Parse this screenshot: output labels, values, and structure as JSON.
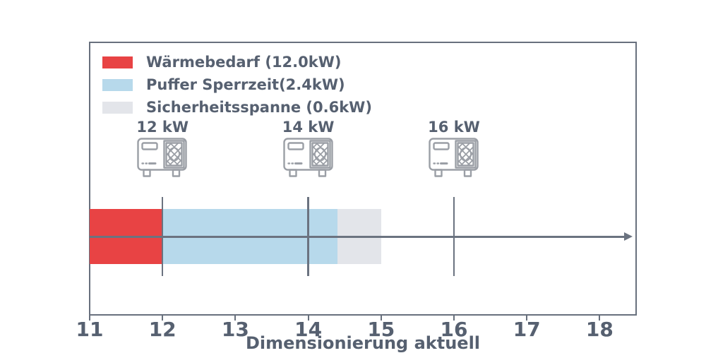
{
  "chart_data": {
    "type": "bar",
    "orientation": "horizontal",
    "title": "",
    "xlabel": "Dimensionierung aktuell",
    "ylabel": "",
    "xlim": [
      11,
      18.5
    ],
    "x_ticks": [
      11,
      12,
      13,
      14,
      15,
      16,
      17,
      18
    ],
    "grid": false,
    "background": "#ffffff",
    "segments": [
      {
        "id": "waermebedarf",
        "from": 11,
        "to": 12,
        "value_kw": 12.0,
        "color": "#e84344"
      },
      {
        "id": "puffer-sperrzeit",
        "from": 12,
        "to": 14.4,
        "value_kw": 2.4,
        "color": "#b7d9eb"
      },
      {
        "id": "sicherheitsspanne",
        "from": 14.4,
        "to": 15,
        "value_kw": 0.6,
        "color": "#e3e5ea"
      }
    ],
    "legend": [
      {
        "label": "Wärmebedarf (12.0kW)",
        "color": "#e84344"
      },
      {
        "label": "Puffer Sperrzeit(2.4kW)",
        "color": "#b7d9eb"
      },
      {
        "label": "Sicherheitsspanne (0.6kW)",
        "color": "#e3e5ea"
      }
    ],
    "legend_position": "upper left",
    "markers": [
      {
        "label": "12 kW",
        "value": 12,
        "icon": "heat-pump-icon"
      },
      {
        "label": "14 kW",
        "value": 14,
        "icon": "heat-pump-icon"
      },
      {
        "label": "16 kW",
        "value": 16,
        "icon": "heat-pump-icon"
      }
    ],
    "colors": {
      "frame": "#68707d",
      "text": "#566070",
      "line": "#6b7380",
      "icon": "#9b9fa6"
    }
  }
}
